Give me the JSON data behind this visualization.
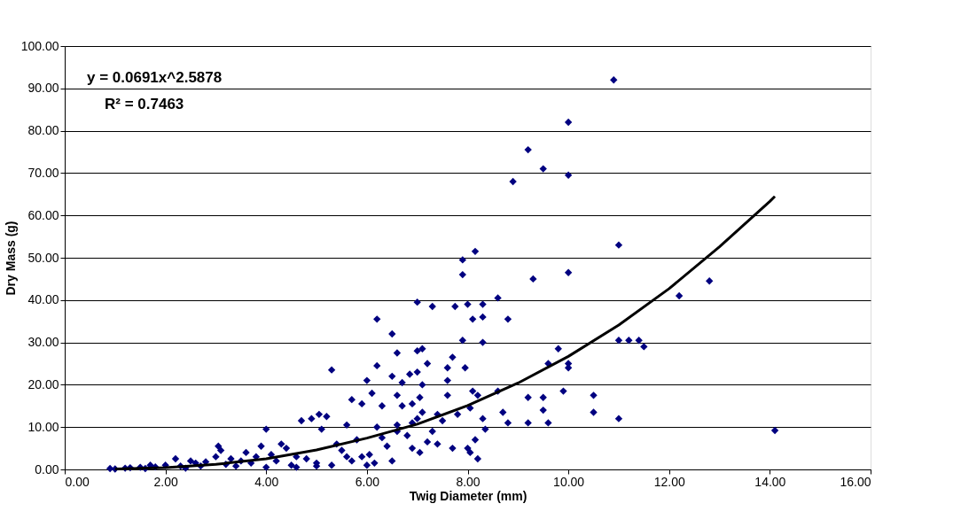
{
  "chart_data": {
    "type": "scatter",
    "xlabel": "Twig Diameter (mm)",
    "ylabel": "Dry Mass (g)",
    "annotations": [
      "y = 0.0691x^2.5878",
      "R² = 0.7463"
    ],
    "xlim": [
      0,
      16
    ],
    "ylim": [
      0,
      100
    ],
    "xticks": [
      {
        "value": 0,
        "label": "0.00"
      },
      {
        "value": 2,
        "label": "2.00"
      },
      {
        "value": 4,
        "label": "4.00"
      },
      {
        "value": 6,
        "label": "6.00"
      },
      {
        "value": 8,
        "label": "8.00"
      },
      {
        "value": 10,
        "label": "10.00"
      },
      {
        "value": 12,
        "label": "12.00"
      },
      {
        "value": 14,
        "label": "14.00"
      },
      {
        "value": 16,
        "label": "16.00"
      }
    ],
    "yticks": [
      {
        "value": 0,
        "label": "0.00"
      },
      {
        "value": 10,
        "label": "10.00"
      },
      {
        "value": 20,
        "label": "20.00"
      },
      {
        "value": 30,
        "label": "30.00"
      },
      {
        "value": 40,
        "label": "40.00"
      },
      {
        "value": 50,
        "label": "50.00"
      },
      {
        "value": 60,
        "label": "60.00"
      },
      {
        "value": 70,
        "label": "70.00"
      },
      {
        "value": 80,
        "label": "80.00"
      },
      {
        "value": 90,
        "label": "90.00"
      },
      {
        "value": 100,
        "label": "100.00"
      }
    ],
    "grid": "y",
    "series": [
      {
        "marker": "diamond",
        "color": "#000080",
        "x": [
          10.9,
          9.2,
          10,
          9.5,
          8.9,
          10,
          8.15,
          7.9,
          11,
          7.9,
          10,
          9.3,
          12.8,
          12.2,
          8.6,
          7,
          7.3,
          7.75,
          8,
          8.3,
          8.8,
          6.2,
          8.1,
          8.3,
          6.5,
          7.9,
          8.3,
          11,
          11.2,
          11.4,
          11.5,
          9.8,
          7,
          7.1,
          6.6,
          7.7,
          9.6,
          10,
          10,
          6.2,
          7.2,
          5.3,
          7.6,
          7.95,
          6.85,
          6.5,
          7,
          8.1,
          8.2,
          8.6,
          9.9,
          9.2,
          9.5,
          10.5,
          6,
          6.1,
          5.9,
          6.6,
          7.05,
          7.6,
          5.7,
          6.3,
          6.7,
          6.9,
          7.1,
          7.5,
          7.8,
          8.05,
          8.3,
          8.7,
          9.5,
          9.6,
          9.2,
          8.8,
          10.5,
          11,
          14.1,
          8.15,
          8.35,
          8,
          7.7,
          8.2,
          8.05,
          7.4,
          7.2,
          6.9,
          7.05,
          6.5,
          6.4,
          6.15,
          6.05,
          6.6,
          6.2,
          5.8,
          5.5,
          5.2,
          5.05,
          4.9,
          4.7,
          5.1,
          4,
          4.3,
          3.9,
          3.05,
          3.1,
          3,
          3.5,
          2.5,
          2.2,
          2,
          1.7,
          1.5,
          1.2,
          0.9,
          1,
          1.3,
          1.8,
          2.3,
          2.6,
          2.8,
          3.3,
          3.7,
          4.1,
          4.2,
          4.5,
          4.6,
          4.8,
          5,
          5.3,
          5.6,
          5.9,
          6.3,
          6.8,
          7.3,
          5.4,
          4.4,
          3.6,
          3.8,
          2.7,
          3.2,
          4,
          5,
          5.7,
          6,
          6.6,
          7,
          7.4,
          7.6,
          6.7,
          7.1,
          6.9,
          5.6,
          4.6,
          3.4,
          2.4,
          1.6
        ],
        "values": [
          92,
          75.5,
          82,
          71,
          68,
          69.5,
          51.5,
          49.5,
          53,
          46,
          46.5,
          45,
          44.5,
          41,
          40.5,
          39.5,
          38.5,
          38.5,
          39,
          39,
          35.5,
          35.5,
          35.5,
          36,
          32,
          30.5,
          30,
          30.5,
          30.5,
          30.5,
          29,
          28.5,
          28,
          28.5,
          27.5,
          26.5,
          25,
          25,
          24,
          24.5,
          25,
          23.5,
          24,
          24,
          22.5,
          22,
          23,
          18.5,
          17.5,
          18.5,
          18.5,
          17,
          17,
          17.5,
          21,
          18,
          15.5,
          17.5,
          17,
          17.5,
          16.5,
          15,
          15,
          15.5,
          13.5,
          11.5,
          13,
          14.5,
          12,
          13.5,
          14,
          11,
          11,
          11,
          13.5,
          12,
          9.2,
          7,
          9.5,
          5,
          5,
          2.5,
          4,
          6,
          6.5,
          5,
          4,
          2,
          5.5,
          1.5,
          3.5,
          9,
          10,
          7,
          4.5,
          12.5,
          13,
          12,
          11.5,
          9.5,
          9.5,
          6,
          5.5,
          5.5,
          4.5,
          3,
          2,
          2,
          2.5,
          1,
          1,
          0.5,
          0.3,
          0.2,
          0.1,
          0.4,
          0.6,
          0.8,
          1.5,
          1.8,
          2.5,
          1.5,
          3.5,
          2,
          1,
          3,
          2.5,
          1.5,
          1,
          3,
          3,
          7.5,
          8,
          9,
          6,
          5,
          4,
          3,
          0.8,
          1.2,
          0.5,
          0.8,
          2,
          1,
          10.5,
          12,
          13,
          21,
          20.5,
          20,
          11,
          10.5,
          0.5,
          0.8,
          0.3,
          0.2
        ]
      },
      {
        "type": "line",
        "marker": "none",
        "line_style": "solid",
        "color": "#000000",
        "x": [
          1,
          2,
          3,
          4,
          5,
          6,
          7,
          8,
          9,
          10,
          11,
          12,
          13,
          14,
          14.1
        ],
        "values": [
          0.1,
          0.4,
          1.2,
          2.5,
          4.6,
          7.4,
          10.7,
          15.1,
          20.4,
          26.7,
          34.1,
          42.7,
          52.6,
          63.3,
          64.5
        ]
      }
    ]
  }
}
